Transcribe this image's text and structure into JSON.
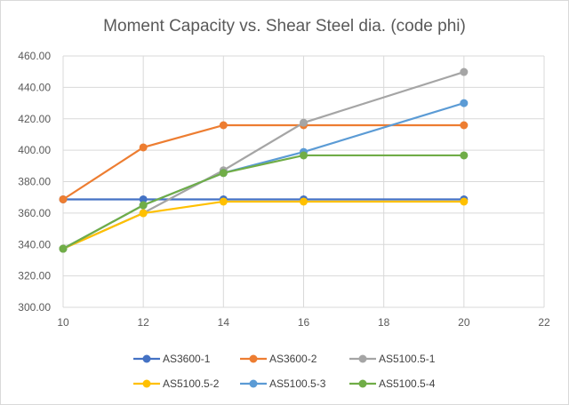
{
  "chart_data": {
    "type": "line",
    "title": "Moment Capacity vs. Shear Steel dia. (code phi)",
    "xlabel": "",
    "ylabel": "",
    "xlim": [
      10,
      22
    ],
    "ylim": [
      300,
      460
    ],
    "x_ticks": [
      "10",
      "12",
      "14",
      "16",
      "18",
      "20",
      "22"
    ],
    "y_ticks": [
      "300.00",
      "320.00",
      "340.00",
      "360.00",
      "380.00",
      "400.00",
      "420.00",
      "440.00",
      "460.00"
    ],
    "grid": true,
    "legend_position": "bottom",
    "x": [
      10,
      12,
      14,
      16,
      20
    ],
    "series": [
      {
        "name": "AS3600-1",
        "color": "#4472C4",
        "values": [
          368.7,
          368.7,
          368.7,
          368.7,
          368.7
        ]
      },
      {
        "name": "AS3600-2",
        "color": "#ED7D31",
        "values": [
          368.7,
          401.8,
          415.9,
          415.9,
          415.9
        ]
      },
      {
        "name": "AS5100.5-1",
        "color": "#A5A5A5",
        "values": [
          337.3,
          360.0,
          387.2,
          417.5,
          449.8
        ]
      },
      {
        "name": "AS5100.5-2",
        "color": "#FFC000",
        "values": [
          337.3,
          359.9,
          367.3,
          367.3,
          367.3
        ]
      },
      {
        "name": "AS5100.5-3",
        "color": "#5B9BD5",
        "values": [
          337.3,
          365.0,
          385.5,
          398.9,
          430.0
        ]
      },
      {
        "name": "AS5100.5-4",
        "color": "#70AD47",
        "values": [
          337.3,
          365.0,
          385.5,
          396.7,
          396.7
        ]
      }
    ]
  }
}
